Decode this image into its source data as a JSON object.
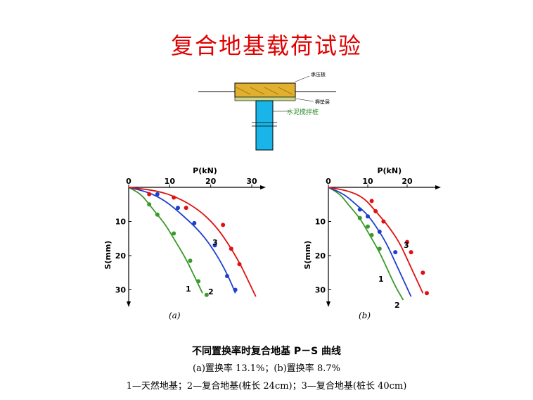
{
  "title": "复合地基载荷试验",
  "diagram": {
    "plate_label": "承压板",
    "cushion_label": "褥垫层",
    "pile_label": "水泥搅拌桩"
  },
  "captions": {
    "main": "不同置换率时复合地基 P－S 曲线",
    "sub": "(a)置换率 13.1%；(b)置换率 8.7%",
    "legend": "1—天然地基；2—复合地基(桩长 24cm)；3—复合地基(桩长 40cm)"
  },
  "colors": {
    "title": "#e00000",
    "series1": "#3a9a2a",
    "series2": "#1f3fcc",
    "series3": "#e01010",
    "pile": "#19b5e8",
    "plate": "#e0b030"
  },
  "chart_data": [
    {
      "type": "line",
      "panel_label": "(a)",
      "xlabel": "P(kN)",
      "ylabel": "S(mm)",
      "xlim": [
        0,
        30
      ],
      "ylim": [
        0,
        33
      ],
      "xticks": [
        0,
        10,
        20,
        30
      ],
      "yticks": [
        10,
        20,
        30
      ],
      "x_axis_position": "top",
      "y_inverted": true,
      "series": [
        {
          "name": "1",
          "points": [
            [
              0,
              0
            ],
            [
              3,
              2
            ],
            [
              5,
              5
            ],
            [
              7,
              8
            ],
            [
              9,
              11
            ],
            [
              11,
              15
            ],
            [
              14,
              21
            ],
            [
              16,
              26
            ],
            [
              18,
              31
            ]
          ],
          "markers": [
            [
              5,
              5
            ],
            [
              7,
              8
            ],
            [
              11,
              13.5
            ],
            [
              15,
              21.5
            ],
            [
              17,
              27.5
            ],
            [
              19,
              31.5
            ]
          ]
        },
        {
          "name": "2",
          "points": [
            [
              0,
              0
            ],
            [
              5,
              1.5
            ],
            [
              9,
              4
            ],
            [
              13,
              8
            ],
            [
              17,
              12.5
            ],
            [
              20,
              17
            ],
            [
              23,
              23
            ],
            [
              25,
              28
            ],
            [
              26,
              31
            ]
          ],
          "markers": [
            [
              7,
              2
            ],
            [
              12,
              6
            ],
            [
              16,
              10.5
            ],
            [
              21,
              17
            ],
            [
              24,
              26
            ],
            [
              26,
              30
            ]
          ]
        },
        {
          "name": "3",
          "points": [
            [
              0,
              0
            ],
            [
              7,
              1
            ],
            [
              12,
              3
            ],
            [
              17,
              6.5
            ],
            [
              21,
              11
            ],
            [
              24,
              16
            ],
            [
              27,
              22
            ],
            [
              29,
              27
            ],
            [
              31,
              32
            ]
          ],
          "markers": [
            [
              5,
              2
            ],
            [
              11,
              3
            ],
            [
              14,
              6
            ],
            [
              23,
              11
            ],
            [
              25,
              18
            ],
            [
              27,
              22.5
            ]
          ]
        }
      ],
      "curve_labels": [
        "1",
        "2",
        "3"
      ]
    },
    {
      "type": "line",
      "panel_label": "(b)",
      "xlabel": "P(kN)",
      "ylabel": "S(mm)",
      "xlim": [
        0,
        25
      ],
      "ylim": [
        0,
        33
      ],
      "xticks": [
        0,
        10,
        20
      ],
      "yticks": [
        10,
        20,
        30
      ],
      "x_axis_position": "top",
      "y_inverted": true,
      "series": [
        {
          "name": "1",
          "points": [
            [
              0,
              0
            ],
            [
              3,
              2
            ],
            [
              5,
              5
            ],
            [
              8,
              9
            ],
            [
              10,
              13
            ],
            [
              13,
              19
            ],
            [
              15,
              24
            ],
            [
              17,
              29
            ],
            [
              19,
              33
            ]
          ],
          "markers": [
            [
              8,
              9
            ],
            [
              10,
              11.5
            ],
            [
              11,
              14
            ],
            [
              13,
              18
            ]
          ]
        },
        {
          "name": "2",
          "points": [
            [
              0,
              0
            ],
            [
              4,
              2
            ],
            [
              7,
              5
            ],
            [
              10,
              8
            ],
            [
              13,
              13
            ],
            [
              15,
              17
            ],
            [
              17,
              22
            ],
            [
              19,
              27
            ],
            [
              21,
              32
            ]
          ],
          "markers": [
            [
              8,
              6.5
            ],
            [
              10,
              8.5
            ],
            [
              13,
              13
            ],
            [
              17,
              19
            ]
          ]
        },
        {
          "name": "3",
          "points": [
            [
              0,
              0
            ],
            [
              5,
              1
            ],
            [
              9,
              3
            ],
            [
              12,
              7
            ],
            [
              15,
              11
            ],
            [
              18,
              16
            ],
            [
              20,
              21
            ],
            [
              22,
              26
            ],
            [
              24,
              31
            ]
          ],
          "markers": [
            [
              11,
              4
            ],
            [
              12,
              7
            ],
            [
              14,
              10
            ],
            [
              20,
              16
            ],
            [
              21,
              19
            ],
            [
              24,
              25
            ],
            [
              25,
              31
            ]
          ]
        }
      ],
      "curve_labels": [
        "1",
        "2",
        "3"
      ]
    }
  ]
}
